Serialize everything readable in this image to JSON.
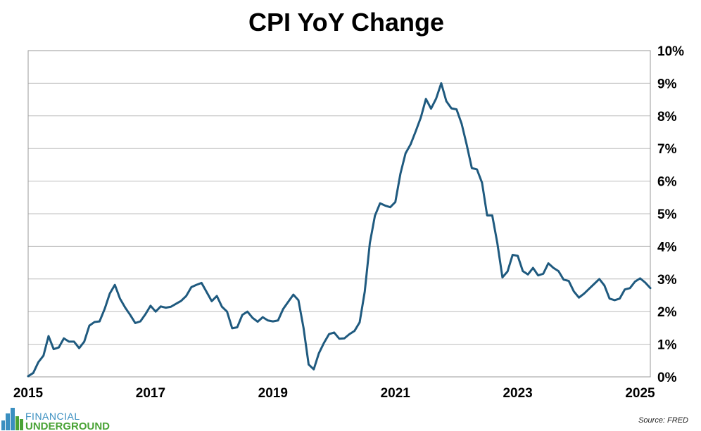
{
  "chart_data": {
    "type": "line",
    "title": "CPI YoY Change",
    "xlabel": "",
    "ylabel": "",
    "x_tick_labels": [
      "2015",
      "2017",
      "2019",
      "2021",
      "2023",
      "2025"
    ],
    "y_tick_labels": [
      "0%",
      "1%",
      "2%",
      "3%",
      "4%",
      "5%",
      "6%",
      "7%",
      "8%",
      "9%",
      "10%"
    ],
    "xlim": [
      "2015-01",
      "2025-03"
    ],
    "ylim": [
      0,
      10
    ],
    "y_axis_side": "right",
    "grid": "horizontal",
    "legend": "none",
    "line_color": "#1f5a7f",
    "x": [
      "2015-01",
      "2015-02",
      "2015-03",
      "2015-04",
      "2015-05",
      "2015-06",
      "2015-07",
      "2015-08",
      "2015-09",
      "2015-10",
      "2015-11",
      "2015-12",
      "2016-01",
      "2016-02",
      "2016-03",
      "2016-04",
      "2016-05",
      "2016-06",
      "2016-07",
      "2016-08",
      "2016-09",
      "2016-10",
      "2016-11",
      "2016-12",
      "2017-01",
      "2017-02",
      "2017-03",
      "2017-04",
      "2017-05",
      "2017-06",
      "2017-07",
      "2017-08",
      "2017-09",
      "2017-10",
      "2017-11",
      "2017-12",
      "2018-01",
      "2018-02",
      "2018-03",
      "2018-04",
      "2018-05",
      "2018-06",
      "2018-07",
      "2018-08",
      "2018-09",
      "2018-10",
      "2018-11",
      "2018-12",
      "2019-01",
      "2019-02",
      "2019-03",
      "2019-04",
      "2019-05",
      "2019-06",
      "2019-07",
      "2019-08",
      "2019-09",
      "2019-10",
      "2019-11",
      "2019-12",
      "2020-01",
      "2020-02",
      "2020-03",
      "2020-04",
      "2020-05",
      "2020-06",
      "2020-07",
      "2020-08",
      "2020-09",
      "2020-10",
      "2020-11",
      "2020-12",
      "2021-01",
      "2021-02",
      "2021-03",
      "2021-04",
      "2021-05",
      "2021-06",
      "2021-07",
      "2021-08",
      "2021-09",
      "2021-10",
      "2021-11",
      "2021-12",
      "2022-01",
      "2022-02",
      "2022-03",
      "2022-04",
      "2022-05",
      "2022-06",
      "2022-07",
      "2022-08",
      "2022-09",
      "2022-10",
      "2022-11",
      "2022-12",
      "2023-01",
      "2023-02",
      "2023-03",
      "2023-04",
      "2023-05",
      "2023-06",
      "2023-07",
      "2023-08",
      "2023-09",
      "2023-10",
      "2023-11",
      "2023-12",
      "2024-01",
      "2024-02",
      "2024-03",
      "2024-04",
      "2024-05",
      "2024-06",
      "2024-07",
      "2024-08",
      "2024-09",
      "2024-10",
      "2024-11",
      "2024-12",
      "2025-01",
      "2025-02",
      "2025-03"
    ],
    "series": [
      {
        "values": [
          0.02,
          0.12,
          0.45,
          0.65,
          1.25,
          0.85,
          0.9,
          1.18,
          1.08,
          1.08,
          0.88,
          1.08,
          1.57,
          1.68,
          1.7,
          2.08,
          2.55,
          2.82,
          2.4,
          2.13,
          1.9,
          1.65,
          1.7,
          1.92,
          2.18,
          2.0,
          2.16,
          2.12,
          2.15,
          2.24,
          2.33,
          2.48,
          2.75,
          2.82,
          2.88,
          2.6,
          2.32,
          2.48,
          2.15,
          2.0,
          1.49,
          1.52,
          1.9,
          2.0,
          1.81,
          1.69,
          1.83,
          1.73,
          1.7,
          1.73,
          2.08,
          2.3,
          2.52,
          2.35,
          1.5,
          0.38,
          0.23,
          0.72,
          1.04,
          1.31,
          1.36,
          1.17,
          1.18,
          1.31,
          1.41,
          1.67,
          2.61,
          4.1,
          4.94,
          5.32,
          5.25,
          5.2,
          5.36,
          6.23,
          6.85,
          7.13,
          7.53,
          7.95,
          8.52,
          8.22,
          8.53,
          9.0,
          8.45,
          8.23,
          8.2,
          7.76,
          7.11,
          6.4,
          6.36,
          5.95,
          4.95,
          4.95,
          4.1,
          3.05,
          3.23,
          3.74,
          3.71,
          3.24,
          3.14,
          3.34,
          3.11,
          3.16,
          3.48,
          3.34,
          3.24,
          2.98,
          2.94,
          2.62,
          2.43,
          2.55,
          2.7,
          2.85,
          3.0,
          2.8,
          2.4,
          2.35,
          2.4,
          2.68,
          2.72,
          2.92,
          3.02,
          2.89,
          2.72
        ]
      }
    ]
  },
  "source": "Source: FRED",
  "logo": {
    "line1": "FINANCIAL",
    "line2": "UNDERGROUND",
    "primary_color": "#3a8fc0",
    "secondary_color": "#4aa336"
  }
}
